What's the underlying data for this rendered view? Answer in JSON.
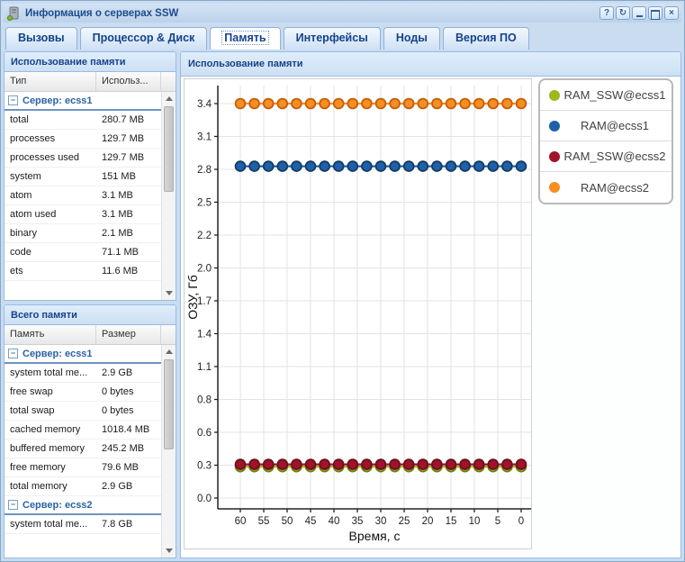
{
  "window": {
    "title": "Информация о серверах SSW",
    "controls": [
      {
        "name": "help",
        "glyph": "?"
      },
      {
        "name": "refresh",
        "glyph": "↻"
      },
      {
        "name": "minimize",
        "glyph": ""
      },
      {
        "name": "maximize",
        "glyph": ""
      },
      {
        "name": "close",
        "glyph": "×"
      }
    ]
  },
  "tabs": [
    {
      "label": "Вызовы",
      "active": false
    },
    {
      "label": "Процессор & Диск",
      "active": false
    },
    {
      "label": "Память",
      "active": true
    },
    {
      "label": "Интерфейсы",
      "active": false
    },
    {
      "label": "Ноды",
      "active": false
    },
    {
      "label": "Версия ПО",
      "active": false
    }
  ],
  "left_panels": [
    {
      "title": "Использование памяти",
      "columns": [
        "Тип",
        "Использ..."
      ],
      "groups": [
        {
          "name": "Сервер: ecss1",
          "rows": [
            [
              "total",
              "280.7 MB"
            ],
            [
              "processes",
              "129.7 MB"
            ],
            [
              "processes used",
              "129.7 MB"
            ],
            [
              "system",
              "151 MB"
            ],
            [
              "atom",
              "3.1 MB"
            ],
            [
              "atom used",
              "3.1 MB"
            ],
            [
              "binary",
              "2.1 MB"
            ],
            [
              "code",
              "71.1 MB"
            ],
            [
              "ets",
              "11.6 MB"
            ]
          ]
        }
      ]
    },
    {
      "title": "Всего памяти",
      "columns": [
        "Память",
        "Размер"
      ],
      "groups": [
        {
          "name": "Сервер: ecss1",
          "rows": [
            [
              "system total me...",
              "2.9 GB"
            ],
            [
              "free swap",
              "0 bytes"
            ],
            [
              "total swap",
              "0 bytes"
            ],
            [
              "cached memory",
              "1018.4 MB"
            ],
            [
              "buffered memory",
              "245.2 MB"
            ],
            [
              "free memory",
              "79.6 MB"
            ],
            [
              "total memory",
              "2.9 GB"
            ]
          ]
        },
        {
          "name": "Сервер: ecss2",
          "rows": [
            [
              "system total me...",
              "7.8 GB"
            ]
          ]
        }
      ]
    }
  ],
  "chart_panel": {
    "title": "Использование памяти"
  },
  "chart_data": {
    "type": "line",
    "title": "Использование памяти",
    "xlabel": "Время, с",
    "ylabel": "ОЗУ, Гб",
    "x": [
      60,
      57,
      54,
      51,
      48,
      45,
      42,
      39,
      36,
      33,
      30,
      27,
      24,
      21,
      18,
      15,
      12,
      9,
      6,
      3,
      0
    ],
    "xticks": [
      60,
      55,
      50,
      45,
      40,
      35,
      30,
      25,
      20,
      15,
      10,
      5,
      0
    ],
    "yticks": [
      "0.0",
      "0.3",
      "0.6",
      "0.8",
      "1.1",
      "1.4",
      "1.7",
      "2.0",
      "2.2",
      "2.5",
      "2.8",
      "3.1",
      "3.4"
    ],
    "ylim": [
      0,
      3.4
    ],
    "grid": true,
    "legend_position": "right",
    "series": [
      {
        "name": "RAM_SSW@ecss1",
        "color": "#9db71f",
        "border": "#6c7f12",
        "values": [
          0.27,
          0.27,
          0.27,
          0.27,
          0.27,
          0.27,
          0.27,
          0.27,
          0.27,
          0.27,
          0.27,
          0.27,
          0.27,
          0.27,
          0.27,
          0.27,
          0.27,
          0.27,
          0.27,
          0.27,
          0.27
        ]
      },
      {
        "name": "RAM@ecss1",
        "color": "#1e61a8",
        "border": "#123c63",
        "values": [
          2.86,
          2.86,
          2.86,
          2.86,
          2.86,
          2.86,
          2.86,
          2.86,
          2.86,
          2.86,
          2.86,
          2.86,
          2.86,
          2.86,
          2.86,
          2.86,
          2.86,
          2.86,
          2.86,
          2.86,
          2.86
        ]
      },
      {
        "name": "RAM_SSW@ecss2",
        "color": "#a1132a",
        "border": "#6c0f1d",
        "values": [
          0.29,
          0.29,
          0.29,
          0.29,
          0.29,
          0.29,
          0.29,
          0.29,
          0.29,
          0.29,
          0.29,
          0.29,
          0.29,
          0.29,
          0.29,
          0.29,
          0.29,
          0.29,
          0.29,
          0.29,
          0.29
        ]
      },
      {
        "name": "RAM@ecss2",
        "color": "#f78e1f",
        "border": "#c25f0f",
        "values": [
          3.4,
          3.4,
          3.4,
          3.4,
          3.4,
          3.4,
          3.4,
          3.4,
          3.4,
          3.4,
          3.4,
          3.4,
          3.4,
          3.4,
          3.4,
          3.4,
          3.4,
          3.4,
          3.4,
          3.4,
          3.4
        ]
      }
    ]
  }
}
